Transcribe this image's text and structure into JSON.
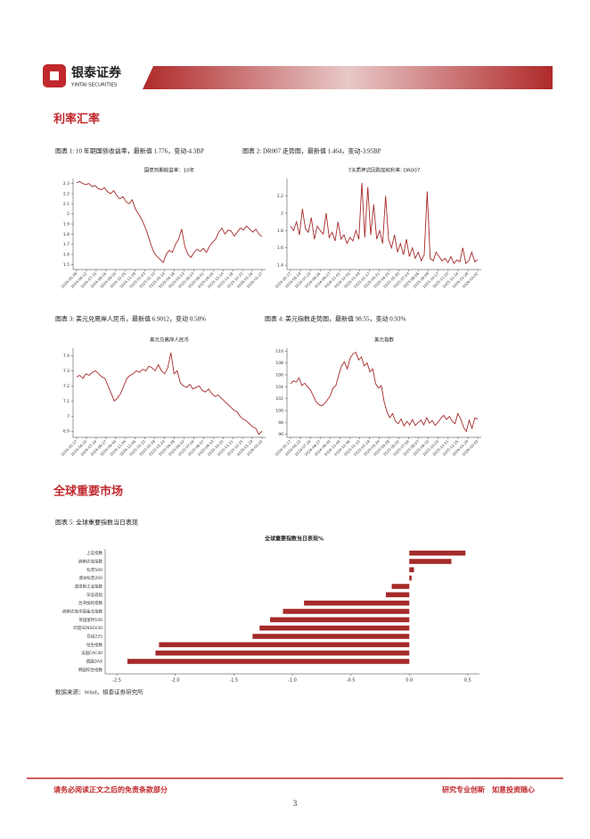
{
  "header": {
    "brand": "银泰证券",
    "brand_en": "YINTAI SECURITIES"
  },
  "sections": [
    "利率汇率",
    "全球重要市场"
  ],
  "figures": [
    {
      "caption": "图表 1: 10 年期国债收益率，最新值 1.776，变动-4.3BP",
      "chart_data": {
        "type": "line",
        "title": "国债到期收益率：10年",
        "color": "#a52a2a",
        "values": [
          2.31,
          2.32,
          2.3,
          2.29,
          2.3,
          2.27,
          2.28,
          2.25,
          2.24,
          2.26,
          2.22,
          2.2,
          2.23,
          2.18,
          2.15,
          2.17,
          2.12,
          2.1,
          2.14,
          2.05,
          2.0,
          1.95,
          1.88,
          1.8,
          1.7,
          1.62,
          1.58,
          1.55,
          1.52,
          1.6,
          1.64,
          1.62,
          1.7,
          1.75,
          1.85,
          1.68,
          1.6,
          1.57,
          1.62,
          1.65,
          1.63,
          1.66,
          1.62,
          1.68,
          1.72,
          1.75,
          1.82,
          1.86,
          1.8,
          1.84,
          1.83,
          1.78,
          1.82,
          1.86,
          1.84,
          1.88,
          1.85,
          1.82,
          1.85,
          1.8,
          1.776
        ],
        "ylim": [
          1.45,
          2.35
        ],
        "yticks": [
          1.5,
          1.6,
          1.7,
          1.8,
          1.9,
          2,
          2.1,
          2.2,
          2.3
        ],
        "xtick_labels": [
          "2024-05-09",
          "2024-06-12",
          "2024-07-15",
          "2024-08-16",
          "2024-09-20",
          "2024-10-25",
          "2024-11-28",
          "2025-01-03",
          "2025-02-10",
          "2025-03-14",
          "2025-04-18",
          "2025-05-23",
          "2025-06-27",
          "2025-08-01",
          "2025-09-05",
          "2025-10-14",
          "2025-11-18",
          "2025-12-22",
          "2026-01-26",
          "2026-02-27"
        ]
      }
    },
    {
      "caption": "图表 2: DR007 走势图，最新值 1.464，变动-3.95BP",
      "chart_data": {
        "type": "line",
        "title": "7天质押式回购加权利率: DR007",
        "color": "#a52a2a",
        "values": [
          1.85,
          1.8,
          1.9,
          1.75,
          2.05,
          1.82,
          1.78,
          1.95,
          1.7,
          1.85,
          1.8,
          1.76,
          2.0,
          1.72,
          1.78,
          1.68,
          1.9,
          1.7,
          1.75,
          1.65,
          1.72,
          1.68,
          1.8,
          1.7,
          2.35,
          1.72,
          2.3,
          1.75,
          2.1,
          1.7,
          1.8,
          1.65,
          2.2,
          1.7,
          1.6,
          1.75,
          1.55,
          1.65,
          1.52,
          1.7,
          1.5,
          1.6,
          1.48,
          1.55,
          1.45,
          1.52,
          2.25,
          1.48,
          1.45,
          1.55,
          1.5,
          1.45,
          1.48,
          1.43,
          1.5,
          1.42,
          1.46,
          1.44,
          1.6,
          1.42,
          1.45,
          1.55,
          1.44,
          1.464
        ],
        "ylim": [
          1.35,
          2.4
        ],
        "yticks": [
          1.4,
          1.6,
          1.8,
          2,
          2.2
        ],
        "xtick_labels": [
          "2024-05-17",
          "2024-06-19",
          "2024-07-23",
          "2024-08-26",
          "2024-09-27",
          "2024-11-01",
          "2024-12-05",
          "2025-01-09",
          "2025-02-17",
          "2025-03-21",
          "2025-04-25",
          "2025-05-30",
          "2025-07-03",
          "2025-08-06",
          "2025-09-09",
          "2025-10-17",
          "2025-11-20",
          "2025-12-24",
          "2026-01-28",
          "2026-03-02"
        ]
      }
    },
    {
      "caption": "图表 3: 美元兑离岸人民币，最新值 6.9012，变动 0.58%",
      "chart_data": {
        "type": "line",
        "title": "美元兑离岸人民币",
        "color": "#a52a2a",
        "values": [
          7.26,
          7.27,
          7.25,
          7.28,
          7.27,
          7.29,
          7.3,
          7.28,
          7.26,
          7.25,
          7.2,
          7.15,
          7.1,
          7.12,
          7.15,
          7.2,
          7.25,
          7.27,
          7.28,
          7.3,
          7.29,
          7.31,
          7.3,
          7.33,
          7.32,
          7.3,
          7.34,
          7.3,
          7.28,
          7.32,
          7.42,
          7.28,
          7.3,
          7.22,
          7.2,
          7.19,
          7.21,
          7.18,
          7.19,
          7.2,
          7.17,
          7.16,
          7.18,
          7.15,
          7.13,
          7.14,
          7.12,
          7.1,
          7.08,
          7.06,
          7.04,
          7.03,
          7.0,
          6.98,
          6.97,
          6.95,
          6.93,
          6.92,
          6.88,
          6.9012
        ],
        "ylim": [
          6.86,
          7.45
        ],
        "yticks": [
          6.9,
          7,
          7.1,
          7.2,
          7.3,
          7.4
        ],
        "xtick_labels": [
          "2024-05-17",
          "2024-06-20",
          "2024-07-24",
          "2024-08-27",
          "2024-09-30",
          "2024-11-04",
          "2024-12-06",
          "2025-01-10",
          "2025-02-18",
          "2025-03-24",
          "2025-04-28",
          "2025-06-02",
          "2025-07-04",
          "2025-08-07",
          "2025-09-10",
          "2025-10-20",
          "2025-11-21",
          "2025-12-25",
          "2026-01-29",
          "2026-03-03"
        ]
      }
    },
    {
      "caption": "图表 4: 美元指数走势图，最新值 98.55，变动 0.93%",
      "chart_data": {
        "type": "line",
        "title": "美元指数",
        "color": "#a52a2a",
        "values": [
          104.5,
          105,
          104.8,
          105.5,
          104.2,
          104.6,
          104,
          103.5,
          102.5,
          101.5,
          101.0,
          100.8,
          101.2,
          101.8,
          102.5,
          103.8,
          104.2,
          106,
          107.5,
          108.2,
          107.0,
          108.8,
          109.5,
          109.8,
          108.5,
          109.0,
          107.5,
          108,
          106.5,
          107,
          104.5,
          103.8,
          104.2,
          101.5,
          99.8,
          98.8,
          99.5,
          98.2,
          97.8,
          98.6,
          97.4,
          98.2,
          97.6,
          98.5,
          97.5,
          98.0,
          98.4,
          97.6,
          98.8,
          97.9,
          98.3,
          97.5,
          98.0,
          98.7,
          99.2,
          98.5,
          99.0,
          98.2,
          97.8,
          99.5,
          98.6,
          97.2,
          96.5,
          98.4,
          97.0,
          98.8,
          98.55
        ],
        "ylim": [
          95.5,
          110.5
        ],
        "yticks": [
          96,
          98,
          100,
          102,
          104,
          106,
          108,
          110
        ],
        "xtick_labels": [
          "2024-05-17",
          "2024-06-20",
          "2024-07-24",
          "2024-08-27",
          "2024-09-30",
          "2024-11-04",
          "2024-12-06",
          "2025-01-10",
          "2025-02-18",
          "2025-03-24",
          "2025-04-28",
          "2025-06-02",
          "2025-07-04",
          "2025-08-07",
          "2025-09-10",
          "2025-10-20",
          "2025-11-21",
          "2025-12-25",
          "2026-01-29",
          "2026-03-03"
        ]
      }
    },
    {
      "caption": "图表 5: 全球重要指数当日表现",
      "chart_data": {
        "type": "hbar",
        "title": "全球重要指数当日表现%",
        "color": "#a52a2a",
        "categories": [
          "上证指数",
          "纳斯达克指数",
          "标普500",
          "澳洲标普200",
          "道琼斯工业指数",
          "深证成指",
          "台湾加权指数",
          "纳斯达克中国金龙指数",
          "英国富时100",
          "印度SENSEX30",
          "日经225",
          "恒生指数",
          "法国CAC40",
          "德国DAX",
          "韩国综合指数"
        ],
        "values": [
          0.48,
          0.36,
          0.04,
          0.02,
          -0.15,
          -0.2,
          -0.9,
          -1.08,
          -1.19,
          -1.28,
          -1.34,
          -2.14,
          -2.17,
          -2.41,
          0
        ],
        "xlim": [
          -2.6,
          0.6
        ],
        "xticks": [
          -2.5,
          {
            "value": -2,
            "label": "-2.0"
          },
          -1.5,
          {
            "value": -1,
            "label": "-1.0"
          },
          -0.5,
          {
            "value": 0,
            "label": "0.0"
          },
          0.5
        ]
      }
    }
  ],
  "source": "数据来源：Wind，银泰证券研究所",
  "footer": {
    "disclaimer": "请务必阅读正文之后的免责条款部分",
    "slogan": "研究专业创新　如意投资随心",
    "page": "3"
  }
}
